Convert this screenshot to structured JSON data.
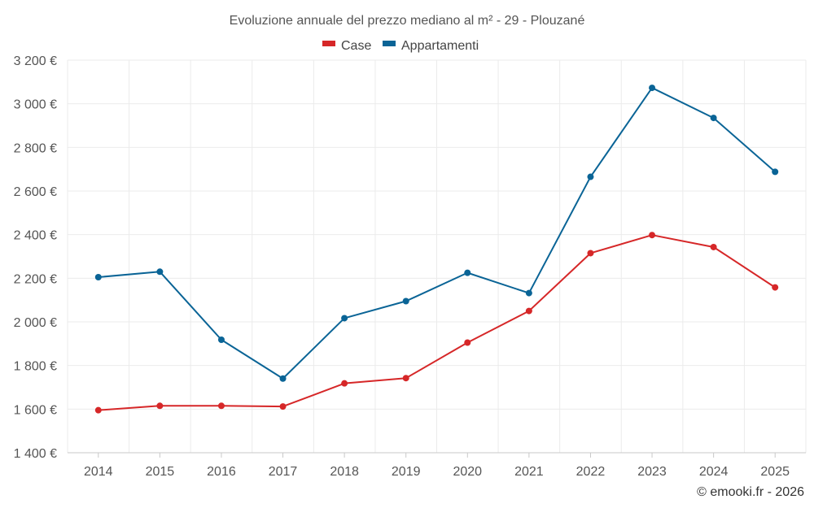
{
  "chart_data": {
    "type": "line",
    "title": "Evoluzione annuale del prezzo mediano al m² - 29 - Plouzané",
    "xlabel": "",
    "ylabel": "",
    "categories": [
      "2014",
      "2015",
      "2016",
      "2017",
      "2018",
      "2019",
      "2020",
      "2021",
      "2022",
      "2023",
      "2024",
      "2025"
    ],
    "ylim": [
      1400,
      3200
    ],
    "yticks": [
      1400,
      1600,
      1800,
      2000,
      2200,
      2400,
      2600,
      2800,
      3000,
      3200
    ],
    "ytick_labels": [
      "1 400 €",
      "1 600 €",
      "1 800 €",
      "2 000 €",
      "2 200 €",
      "2 400 €",
      "2 600 €",
      "2 800 €",
      "3 000 €",
      "3 200 €"
    ],
    "grid": true,
    "legend_position": "top-center",
    "series": [
      {
        "name": "Case",
        "color": "#d62728",
        "values": [
          1595,
          1615,
          1615,
          1612,
          1718,
          1742,
          1905,
          2050,
          2315,
          2398,
          2343,
          2158
        ]
      },
      {
        "name": "Appartamenti",
        "color": "#0a6496",
        "values": [
          2205,
          2230,
          1918,
          1740,
          2017,
          2095,
          2225,
          2132,
          2665,
          3073,
          2935,
          2688
        ]
      }
    ]
  },
  "credit": "© emooki.fr - 2026"
}
